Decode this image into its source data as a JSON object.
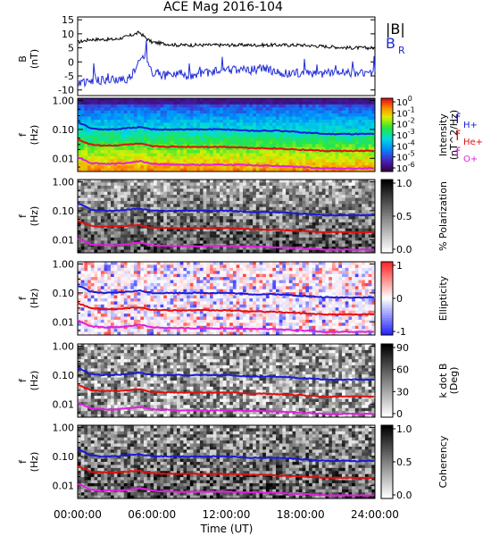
{
  "title": "ACE Mag 2016-104",
  "xlabel": "Time (UT)",
  "x_ticks": [
    "00:00:00",
    "06:00:00",
    "12:00:00",
    "18:00:00",
    "24:00:00"
  ],
  "colors": {
    "B_total": "#000000",
    "B_R": "#1f2bd6",
    "f_H": "#1a1ad6",
    "f_He": "#e01010",
    "f_O": "#e020e0"
  },
  "chart_data": [
    {
      "type": "line",
      "panel": "B",
      "ylabel_top": "B",
      "ylabel_unit": "(nT)",
      "ylim": [
        -12,
        16
      ],
      "y_ticks": [
        "15",
        "10",
        "5",
        "0",
        "-5",
        "-10"
      ],
      "x_hours": [
        0,
        24
      ],
      "legend": [
        {
          "label": "|B|"
        },
        {
          "label": "B",
          "sub": "R"
        }
      ],
      "series": [
        {
          "name": "|B|",
          "x": [
            0,
            1,
            2,
            3,
            4,
            5,
            5.5,
            6,
            7,
            8,
            9,
            10,
            12,
            14,
            16,
            18,
            20,
            22,
            24
          ],
          "values": [
            7,
            8,
            8,
            8,
            9,
            10.5,
            8.5,
            7,
            6.5,
            6,
            6,
            6,
            6,
            6,
            6,
            6,
            5.5,
            5,
            5
          ]
        },
        {
          "name": "B_R",
          "x": [
            0,
            1,
            2,
            3,
            4,
            4.5,
            5,
            5.5,
            6,
            7,
            8,
            9,
            10,
            12,
            14,
            15,
            16,
            18,
            20,
            22,
            24
          ],
          "values": [
            -7,
            -7,
            -6.5,
            -6.5,
            -6,
            -4,
            0,
            3,
            -4,
            -5,
            -4,
            -5,
            -4,
            -3,
            -3,
            -2,
            -4,
            -4,
            -4,
            -4,
            -4
          ]
        }
      ]
    },
    {
      "type": "heatmap",
      "panel": "Intensity",
      "ylabel_top": "f",
      "ylabel_unit": "(Hz)",
      "y_ticks": [
        "1.00",
        "0.10",
        "0.01"
      ],
      "colorbar": {
        "labels": [
          "10^0",
          "10^-1",
          "10^-2",
          "10^-3",
          "10^-4",
          "10^-5",
          "10^-6"
        ],
        "title": "Intensity",
        "unit": "(nT^2/Hz)"
      },
      "lines": [
        {
          "name": "f_H+",
          "x": [
            0,
            1,
            2,
            3,
            4,
            5,
            6,
            8,
            10,
            12,
            14,
            16,
            18,
            20,
            22,
            24
          ],
          "values": [
            0.18,
            0.11,
            0.1,
            0.1,
            0.11,
            0.12,
            0.1,
            0.1,
            0.1,
            0.1,
            0.09,
            0.09,
            0.08,
            0.07,
            0.07,
            0.07
          ]
        },
        {
          "name": "f_He+",
          "x": [
            0,
            1,
            2,
            3,
            4,
            5,
            6,
            8,
            10,
            12,
            14,
            16,
            18,
            20,
            22,
            24
          ],
          "values": [
            0.045,
            0.03,
            0.028,
            0.028,
            0.03,
            0.032,
            0.026,
            0.025,
            0.025,
            0.025,
            0.023,
            0.022,
            0.02,
            0.018,
            0.018,
            0.018
          ]
        },
        {
          "name": "f_O+",
          "x": [
            0,
            1,
            2,
            3,
            4,
            5,
            6,
            8,
            10,
            12,
            14,
            16,
            18,
            20,
            22,
            24
          ],
          "values": [
            0.011,
            0.007,
            0.0065,
            0.0065,
            0.007,
            0.008,
            0.0065,
            0.006,
            0.006,
            0.006,
            0.0058,
            0.0055,
            0.005,
            0.0045,
            0.0045,
            0.0045
          ]
        }
      ],
      "labels_right": [
        {
          "label": "f",
          "sub": "H+"
        },
        {
          "label": "f",
          "sub": "He+"
        },
        {
          "label": "f",
          "sub": "O+"
        }
      ]
    },
    {
      "type": "heatmap",
      "panel": "Polarization",
      "ylabel_top": "f",
      "ylabel_unit": "(Hz)",
      "y_ticks": [
        "1.00",
        "0.10",
        "0.01"
      ],
      "colorbar": {
        "labels": [
          "1.0",
          "0.5",
          "0.0"
        ],
        "title": "% Polarization",
        "unit": ""
      }
    },
    {
      "type": "heatmap",
      "panel": "Ellipticity",
      "ylabel_top": "f",
      "ylabel_unit": "(Hz)",
      "y_ticks": [
        "1.00",
        "0.10",
        "0.01"
      ],
      "colorbar": {
        "labels": [
          "1",
          "0",
          "-1"
        ],
        "title": "Ellipticity",
        "unit": ""
      }
    },
    {
      "type": "heatmap",
      "panel": "k dot B",
      "ylabel_top": "f",
      "ylabel_unit": "(Hz)",
      "y_ticks": [
        "1.00",
        "0.10",
        "0.01"
      ],
      "colorbar": {
        "labels": [
          "90",
          "60",
          "30",
          "0"
        ],
        "title": "k dot B",
        "unit": "(Deg)"
      }
    },
    {
      "type": "heatmap",
      "panel": "Coherency",
      "ylabel_top": "f",
      "ylabel_unit": "(Hz)",
      "y_ticks": [
        "1.00",
        "0.10",
        "0.01"
      ],
      "colorbar": {
        "labels": [
          "1.0",
          "0.5",
          "0.0"
        ],
        "title": "Coherency",
        "unit": ""
      }
    }
  ]
}
